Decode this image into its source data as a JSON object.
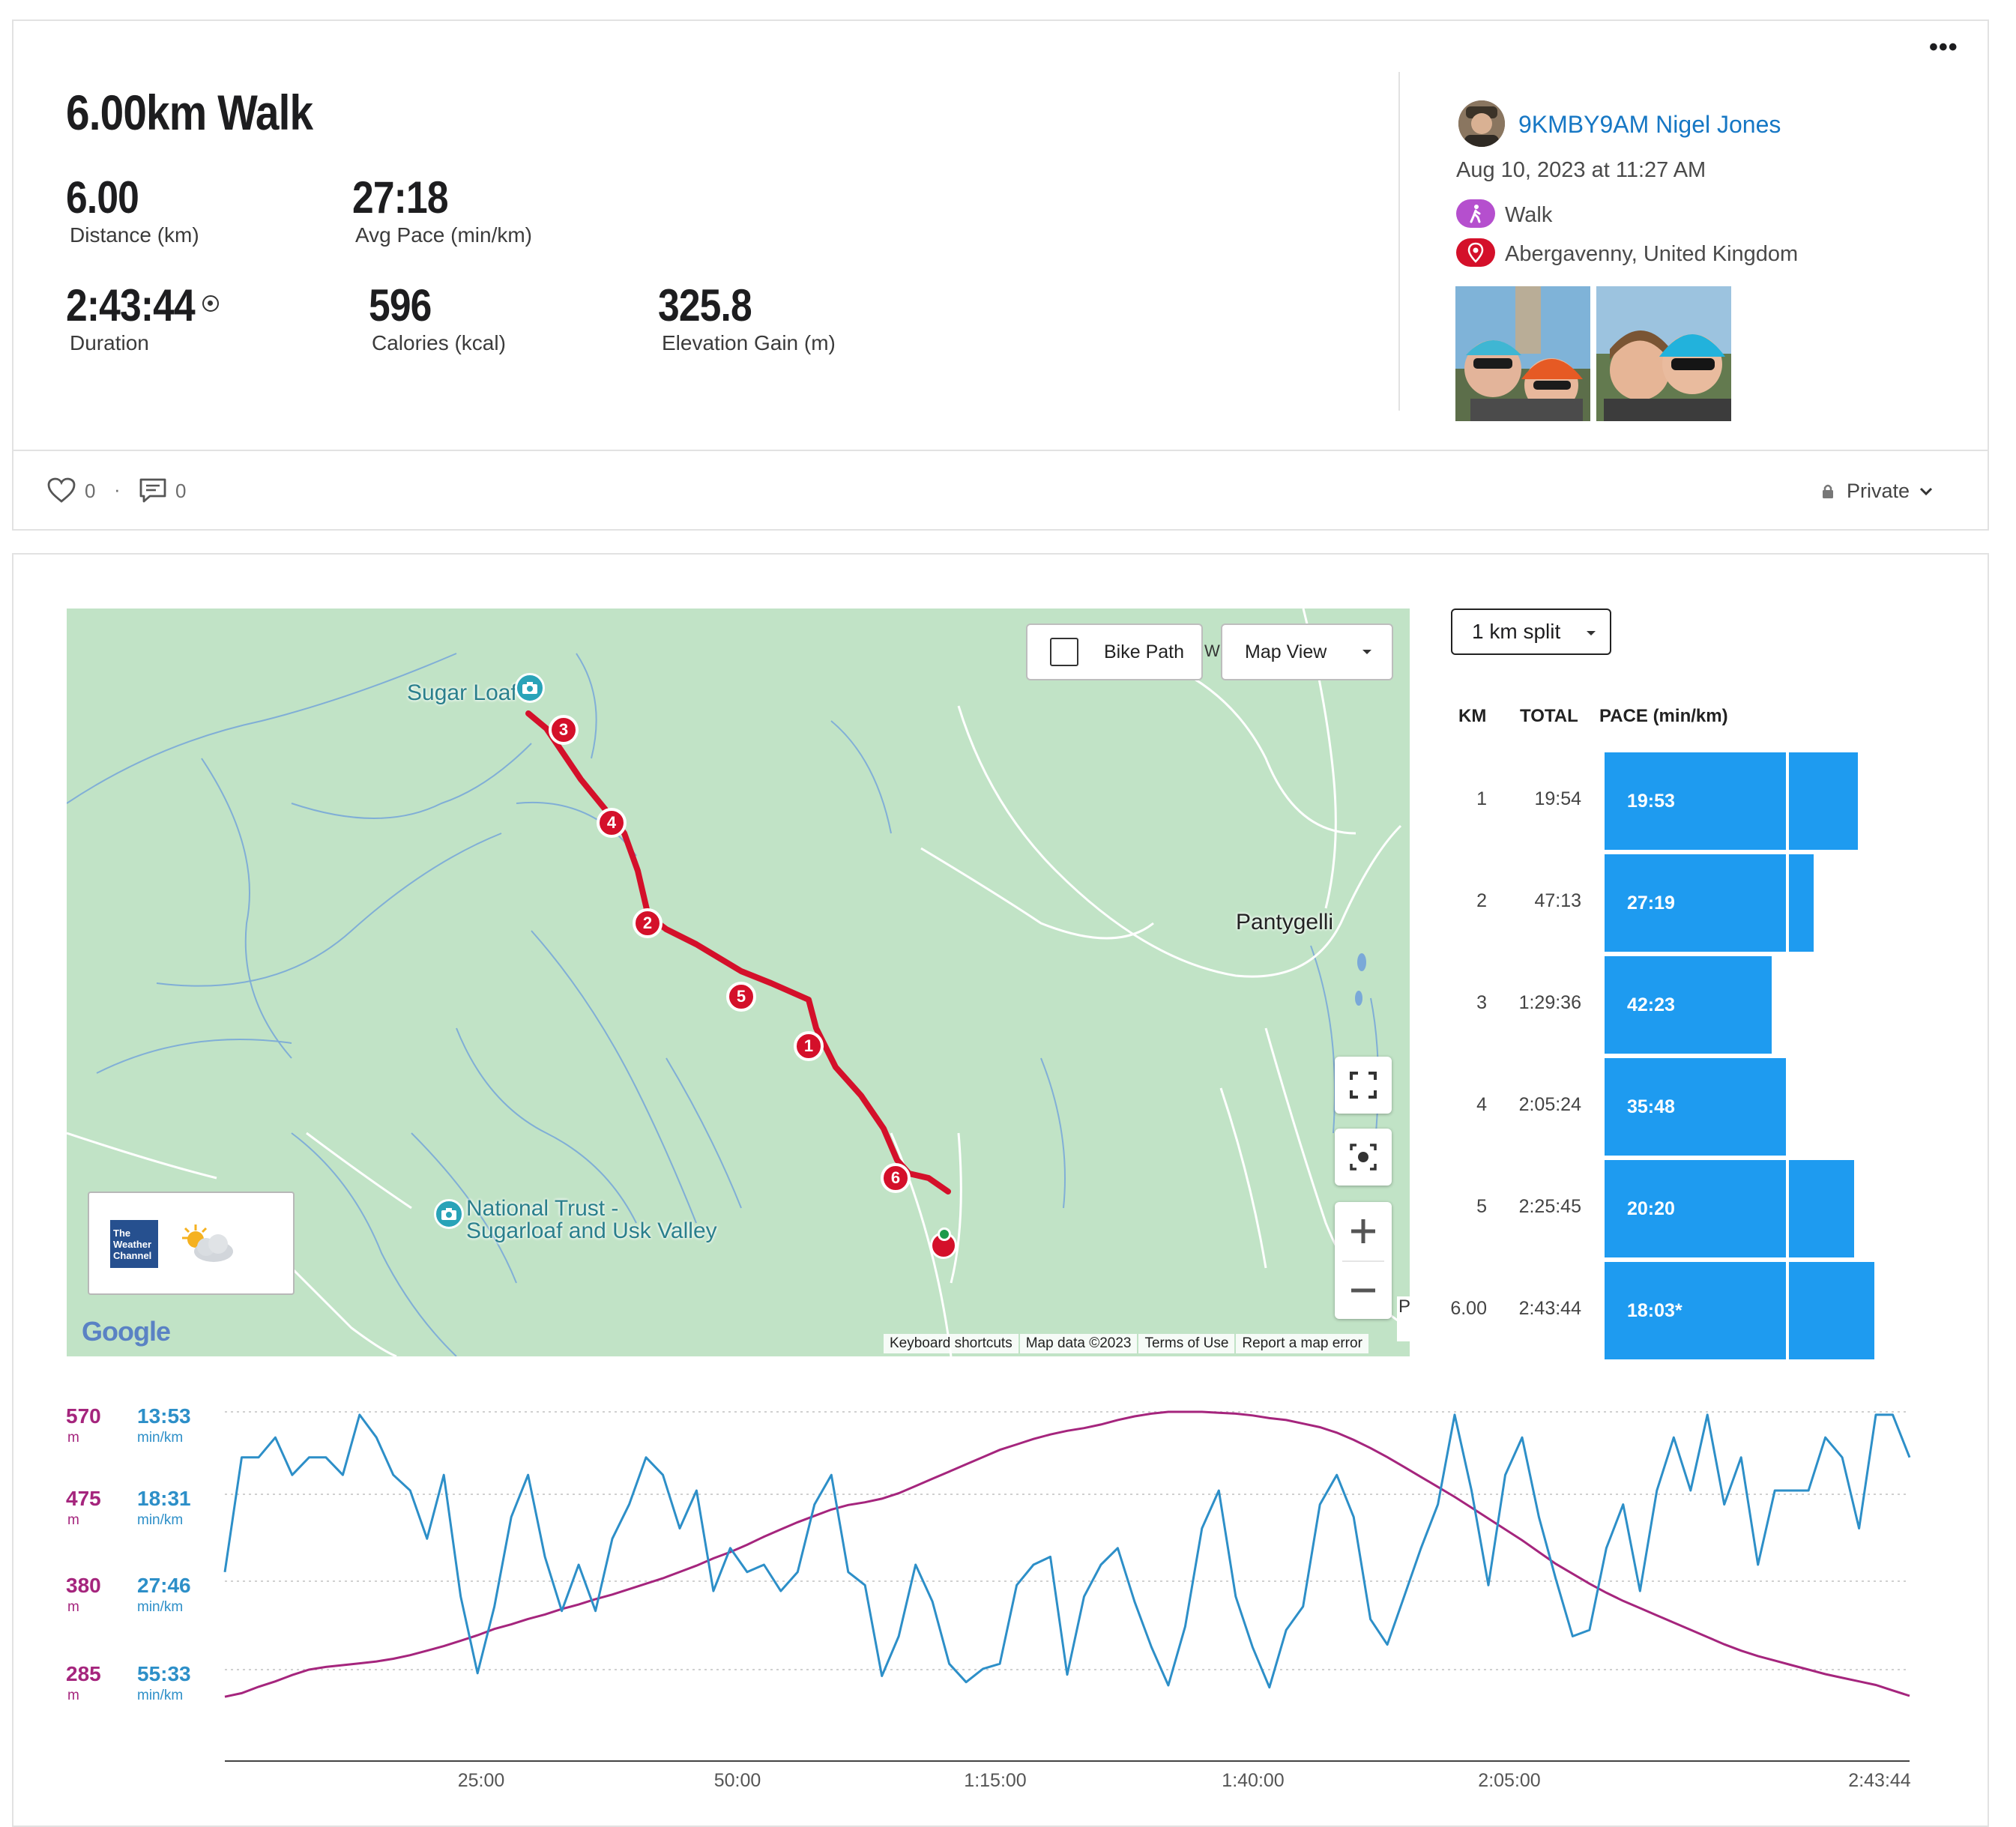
{
  "activity": {
    "title": "6.00km Walk",
    "stats": [
      {
        "value": "6.00",
        "label": "Distance (km)"
      },
      {
        "value": "27:18",
        "label": "Avg Pace (min/km)"
      },
      {
        "value": "2:43:44",
        "label": "Duration"
      },
      {
        "value": "596",
        "label": "Calories (kcal)"
      },
      {
        "value": "325.8",
        "label": "Elevation Gain (m)"
      }
    ],
    "more_menu": "•••"
  },
  "user": {
    "name": "9KMBY9AM Nigel Jones",
    "datetime": "Aug 10, 2023 at 11:27 AM",
    "activity_type": "Walk",
    "location": "Abergavenny, United Kingdom",
    "type_color": "#b54fce",
    "location_color": "#d4102a"
  },
  "social": {
    "likes": "0",
    "separator": "·",
    "comments": "0",
    "privacy": "Private"
  },
  "map": {
    "bike_path_label": "Bike Path",
    "view_select": "Map View",
    "places": {
      "sugar_loaf": "Sugar Loaf",
      "pantygelli": "Pantygelli",
      "nt_line1": "National Trust -",
      "nt_line2": "Sugarloaf and Usk Valley"
    },
    "weather_logo": [
      "The",
      "Weather",
      "Channel"
    ],
    "google": "Google",
    "footer": [
      "Keyboard shortcuts",
      "Map data ©2023",
      "Terms of Use",
      "Report a map error"
    ],
    "edge_w": "W",
    "edge_p": "P",
    "km_markers": [
      "3",
      "4",
      "2",
      "5",
      "1",
      "6"
    ],
    "route_color": "#d4102a"
  },
  "splits": {
    "selector": "1 km split",
    "headers": {
      "km": "KM",
      "total": "TOTAL",
      "pace": "PACE (min/km)"
    },
    "rows": [
      {
        "km": "1",
        "total": "19:54",
        "pace": "19:53"
      },
      {
        "km": "2",
        "total": "47:13",
        "pace": "27:19"
      },
      {
        "km": "3",
        "total": "1:29:36",
        "pace": "42:23"
      },
      {
        "km": "4",
        "total": "2:05:24",
        "pace": "35:48"
      },
      {
        "km": "5",
        "total": "2:25:45",
        "pace": "20:20"
      },
      {
        "km": "6.00",
        "total": "2:43:44",
        "pace": "18:03*"
      }
    ],
    "bar_color": "#1e9bf0"
  },
  "chart_data": {
    "type": "line",
    "x_ticks": [
      "25:00",
      "50:00",
      "1:15:00",
      "1:40:00",
      "2:05:00",
      "2:43:44"
    ],
    "elevation_axis": {
      "ticks": [
        "570",
        "475",
        "380",
        "285"
      ],
      "unit": "m",
      "color": "#a5257d"
    },
    "pace_axis": {
      "ticks": [
        "13:53",
        "18:31",
        "27:46",
        "55:33"
      ],
      "unit": "min/km",
      "color": "#2d8fc8"
    },
    "series": [
      {
        "values_elevation_m": [
          255,
          259,
          266,
          272,
          279,
          285,
          288,
          290,
          292,
          294,
          297,
          301,
          306,
          311,
          317,
          323,
          330,
          335,
          341,
          346,
          352,
          357,
          363,
          368,
          374,
          380,
          386,
          393,
          400,
          408,
          415,
          423,
          432,
          440,
          448,
          455,
          462,
          467,
          470,
          474,
          480,
          488,
          496,
          504,
          512,
          520,
          528,
          534,
          540,
          545,
          549,
          552,
          556,
          561,
          565,
          568,
          570,
          570,
          570,
          569,
          568,
          566,
          563,
          561,
          557,
          553,
          547,
          539,
          530,
          520,
          509,
          498,
          487,
          476,
          464,
          452,
          440,
          428,
          415,
          402,
          391,
          380,
          370,
          361,
          353,
          345,
          337,
          329,
          321,
          313,
          306,
          300,
          295,
          290,
          285,
          280,
          276,
          272,
          268,
          262,
          256
        ]
      },
      {
        "values_pace_min_per_km": [
          26,
          16,
          16,
          15,
          17,
          16,
          16,
          17,
          14,
          15,
          17,
          18,
          22,
          17,
          30,
          58,
          32,
          20,
          17,
          24,
          33,
          25,
          33,
          22,
          19,
          16,
          17,
          21,
          18,
          29,
          23,
          26,
          25,
          29,
          26,
          19,
          17,
          26,
          28,
          60,
          40,
          25,
          31,
          52,
          65,
          55,
          52,
          28,
          25,
          24,
          59,
          30,
          25,
          23,
          31,
          44,
          68,
          37,
          21,
          18,
          30,
          44,
          70,
          38,
          32,
          19,
          17,
          20,
          35,
          43,
          30,
          23,
          19,
          14,
          18,
          28,
          17,
          15,
          20,
          27,
          40,
          38,
          23,
          19,
          29,
          18,
          15,
          18,
          14,
          19,
          16,
          25,
          18,
          18,
          18,
          15,
          16,
          21,
          14,
          14,
          16
        ]
      }
    ],
    "x_range_seconds": [
      0,
      9824
    ],
    "elevation_ylim": [
      240,
      590
    ],
    "grid": true
  }
}
